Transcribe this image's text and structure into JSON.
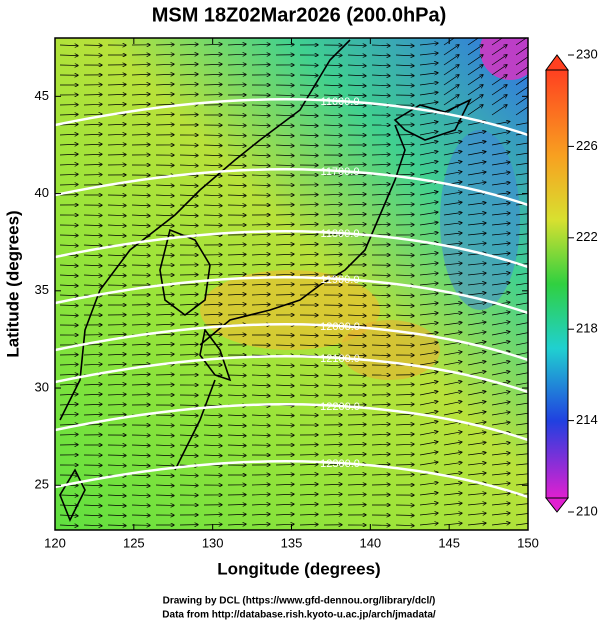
{
  "header": {
    "title": "MSM 18Z02Mar2026 (200.0hPa)"
  },
  "map": {
    "x_label": "Longitude (degrees)",
    "y_label": "Latitude  (degrees)",
    "xlim": [
      120,
      150
    ],
    "ylim": [
      22.7,
      48
    ],
    "x_ticks": [
      120,
      125,
      130,
      135,
      140,
      145,
      150
    ],
    "y_ticks": [
      25,
      30,
      35,
      40,
      45
    ],
    "contour_labels": [
      "11600.0",
      "11700.0",
      "11800.0",
      "11900.0",
      "12000.0",
      "12100.0",
      "12200.0",
      "12300.0"
    ]
  },
  "colorbar": {
    "clim": [
      210,
      230
    ],
    "ticks": [
      210,
      214,
      218,
      222,
      226,
      230
    ]
  },
  "footer": {
    "lines": [
      "Drawing by DCL (https://www.gfd-dennou.org/library/dcl/)",
      "Data from http://database.rish.kyoto-u.ac.jp/arch/jmadata/"
    ]
  }
}
